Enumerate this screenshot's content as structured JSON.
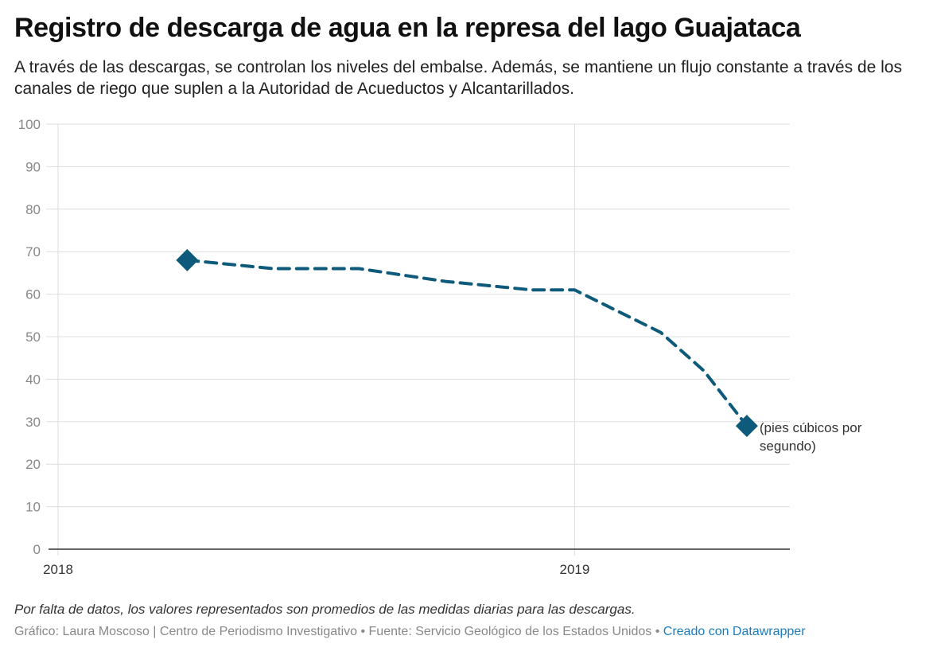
{
  "header": {
    "title": "Registro de descarga de agua en la represa del lago Guajataca",
    "subtitle": "A través de las descargas, se controlan los niveles del embalse. Además, se mantiene un flujo constante a través de los canales de riego que suplen a la Autoridad de Acueductos y Alcantarillados."
  },
  "chart_data": {
    "type": "line",
    "x": [
      "2018-04",
      "2018-06",
      "2018-08",
      "2018-10",
      "2018-12",
      "2019-01",
      "2019-03",
      "2019-04",
      "2019-05"
    ],
    "series": [
      {
        "name": "",
        "values": [
          68,
          66,
          66,
          63,
          61,
          61,
          51,
          42,
          29
        ]
      }
    ],
    "markers": [
      "first",
      "last"
    ],
    "end_label": [
      "(pies cúbicos por",
      "segundo)"
    ],
    "xticks": [
      "2018",
      "2019"
    ],
    "xrange": [
      "2018-01",
      "2019-06"
    ],
    "yticks": [
      "0",
      "10",
      "20",
      "30",
      "40",
      "50",
      "60",
      "70",
      "80",
      "90",
      "100"
    ],
    "ylim": [
      0,
      100
    ],
    "grid": true,
    "line_style": "dashed",
    "colors": {
      "line": "#0e5a7a",
      "grid": "#dddddd",
      "axis": "#333333",
      "tick_label": "#888888"
    }
  },
  "notes": {
    "note": "Por falta de datos, los valores representados son promedios de las medidas diarias para las descargas.",
    "credits": "Gráfico: Laura Moscoso | Centro de Periodismo Investigativo • Fuente: Servicio Geológico de los Estados Unidos •",
    "link": "Creado con Datawrapper"
  }
}
